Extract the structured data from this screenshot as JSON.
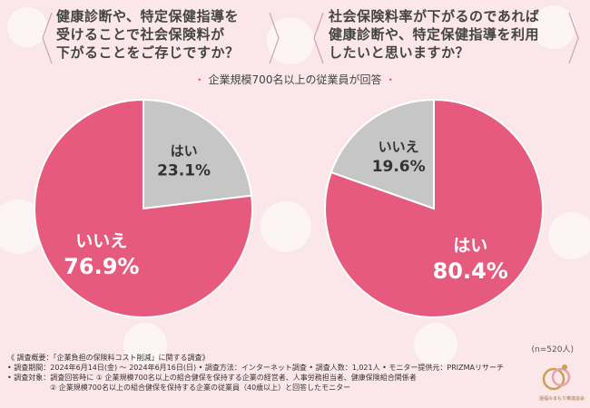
{
  "questions": {
    "left": [
      "健康診断や、特定保健指導を",
      "受けることで社会保険料が",
      "下がることをご存じですか？"
    ],
    "right": [
      "社会保険料率が下がるのであれば",
      "健康診断や、特定保健指導を利用",
      "したいと思いますか？"
    ]
  },
  "subtitle": {
    "dot": "・",
    "text": "企業規模700名以上の従業員が回答"
  },
  "sample_size": "(n=520人)",
  "notes": [
    "《 調査概要：「企業負担の保険料コスト削減」に関する調査》",
    "• 調査期間：2024年6月14日(金) ～ 2024年6月16日(日) • 調査方法：インターネット調査 • 調査人数：1,021人 • モニター提供元：PRIZMAリサーチ",
    "• 調査対象：調査回答時に ① 企業規模700名以上の組合健保を保持する企業の経営者、人事労務担当者、健康保険組合関係者",
    "② 企業規模700名以上の組合健保を保持する企業の従業員（40歳以上）と回答したモニター"
  ],
  "logo_text": "還福みまもり推進協会",
  "colors": {
    "yes_left": "#c6c6c6",
    "no_left": "#e65b7d",
    "yes_right": "#e65b7d",
    "no_right": "#c6c6c6",
    "background": "#fbe6ea",
    "accent": "#e8587a"
  },
  "chart_data": [
    {
      "type": "pie",
      "title": "健康診断や、特定保健指導を受けることで社会保険料が下がることをご存じですか？",
      "slices": [
        {
          "label": "はい",
          "value": 23.1,
          "display": "23.1%"
        },
        {
          "label": "いいえ",
          "value": 76.9,
          "display": "76.9%"
        }
      ]
    },
    {
      "type": "pie",
      "title": "社会保険料率が下がるのであれば健康診断や、特定保健指導を利用したいと思いますか？",
      "slices": [
        {
          "label": "はい",
          "value": 80.4,
          "display": "80.4%"
        },
        {
          "label": "いいえ",
          "value": 19.6,
          "display": "19.6%"
        }
      ]
    }
  ]
}
